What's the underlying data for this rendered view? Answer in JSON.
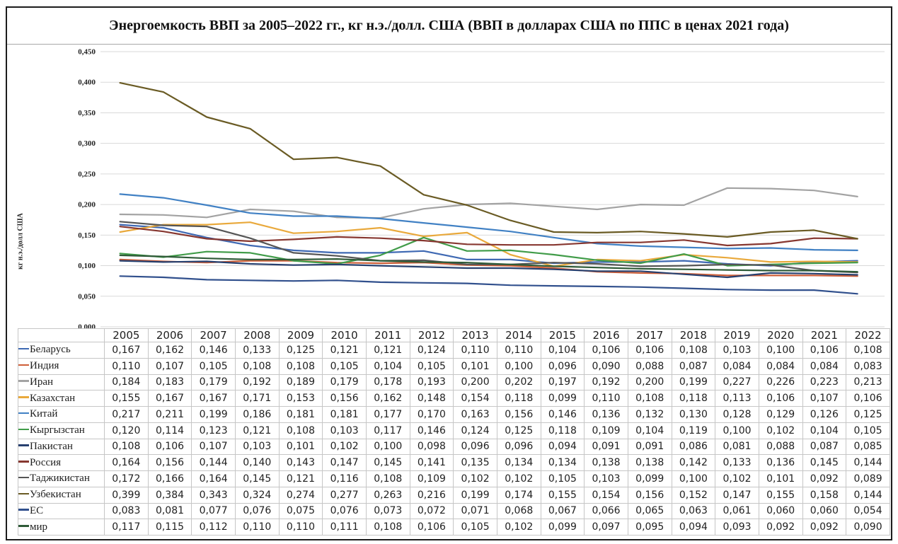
{
  "title": "Энергоемкость ВВП за 2005–2022 гг., кг н.э./долл. США (ВВП в долларах США по ППС в ценах 2021 года)",
  "chart_data": {
    "type": "line",
    "title": "Энергоемкость ВВП за 2005–2022 гг., кг н.э./долл. США (ВВП в долларах США по ППС в ценах 2021 года)",
    "xlabel": "",
    "ylabel": "кг н.э./долл США",
    "ylim": [
      0,
      0.45
    ],
    "ytick_step": 0.05,
    "ytick_labels": [
      "0,000",
      "0,050",
      "0,100",
      "0,150",
      "0,200",
      "0,250",
      "0,300",
      "0,350",
      "0,400",
      "0,450"
    ],
    "grid": true,
    "gridline_color": "#d9d9d9",
    "legend_position": "table-left-column",
    "x": [
      "2005",
      "2006",
      "2007",
      "2008",
      "2009",
      "2010",
      "2011",
      "2012",
      "2013",
      "2014",
      "2015",
      "2016",
      "2017",
      "2018",
      "2019",
      "2020",
      "2021",
      "2022"
    ],
    "series": [
      {
        "name": "Беларусь",
        "color": "#3F69B3",
        "values": [
          0.167,
          0.162,
          0.146,
          0.133,
          0.125,
          0.121,
          0.121,
          0.124,
          0.11,
          0.11,
          0.104,
          0.106,
          0.106,
          0.108,
          0.103,
          0.1,
          0.106,
          0.108
        ]
      },
      {
        "name": "Индия",
        "color": "#CE5F38",
        "values": [
          0.11,
          0.107,
          0.105,
          0.108,
          0.108,
          0.105,
          0.104,
          0.105,
          0.101,
          0.1,
          0.096,
          0.09,
          0.088,
          0.087,
          0.084,
          0.084,
          0.084,
          0.083
        ]
      },
      {
        "name": "Иран",
        "color": "#A3A3A3",
        "values": [
          0.184,
          0.183,
          0.179,
          0.192,
          0.189,
          0.179,
          0.178,
          0.193,
          0.2,
          0.202,
          0.197,
          0.192,
          0.2,
          0.199,
          0.227,
          0.226,
          0.223,
          0.213
        ]
      },
      {
        "name": "Казахстан",
        "color": "#E9A93C",
        "values": [
          0.155,
          0.167,
          0.167,
          0.171,
          0.153,
          0.156,
          0.162,
          0.148,
          0.154,
          0.118,
          0.099,
          0.11,
          0.108,
          0.118,
          0.113,
          0.106,
          0.107,
          0.106
        ]
      },
      {
        "name": "Китай",
        "color": "#4181C4",
        "values": [
          0.217,
          0.211,
          0.199,
          0.186,
          0.181,
          0.181,
          0.177,
          0.17,
          0.163,
          0.156,
          0.146,
          0.136,
          0.132,
          0.13,
          0.128,
          0.129,
          0.126,
          0.125
        ]
      },
      {
        "name": "Кыргызстан",
        "color": "#419C49",
        "values": [
          0.12,
          0.114,
          0.123,
          0.121,
          0.108,
          0.103,
          0.117,
          0.146,
          0.124,
          0.125,
          0.118,
          0.109,
          0.104,
          0.119,
          0.1,
          0.102,
          0.104,
          0.105
        ]
      },
      {
        "name": "Пакистан",
        "color": "#27406F",
        "values": [
          0.108,
          0.106,
          0.107,
          0.103,
          0.101,
          0.102,
          0.1,
          0.098,
          0.096,
          0.096,
          0.094,
          0.091,
          0.091,
          0.086,
          0.081,
          0.088,
          0.087,
          0.085
        ]
      },
      {
        "name": "Россия",
        "color": "#873730",
        "values": [
          0.164,
          0.156,
          0.144,
          0.14,
          0.143,
          0.147,
          0.145,
          0.141,
          0.135,
          0.134,
          0.134,
          0.138,
          0.138,
          0.142,
          0.133,
          0.136,
          0.145,
          0.144
        ]
      },
      {
        "name": "Таджикистан",
        "color": "#555555",
        "values": [
          0.172,
          0.166,
          0.164,
          0.145,
          0.121,
          0.116,
          0.108,
          0.109,
          0.102,
          0.102,
          0.105,
          0.103,
          0.099,
          0.1,
          0.102,
          0.101,
          0.092,
          0.089
        ]
      },
      {
        "name": "Узбекистан",
        "color": "#6A5B24",
        "values": [
          0.399,
          0.384,
          0.343,
          0.324,
          0.274,
          0.277,
          0.263,
          0.216,
          0.199,
          0.174,
          0.155,
          0.154,
          0.156,
          0.152,
          0.147,
          0.155,
          0.158,
          0.144
        ]
      },
      {
        "name": "ЕС",
        "color": "#31508D",
        "values": [
          0.083,
          0.081,
          0.077,
          0.076,
          0.075,
          0.076,
          0.073,
          0.072,
          0.071,
          0.068,
          0.067,
          0.066,
          0.065,
          0.063,
          0.061,
          0.06,
          0.06,
          0.054
        ]
      },
      {
        "name": "мир",
        "color": "#2F5B38",
        "values": [
          0.117,
          0.115,
          0.112,
          0.11,
          0.11,
          0.111,
          0.108,
          0.106,
          0.105,
          0.102,
          0.099,
          0.097,
          0.095,
          0.094,
          0.093,
          0.092,
          0.092,
          0.09
        ]
      }
    ]
  }
}
